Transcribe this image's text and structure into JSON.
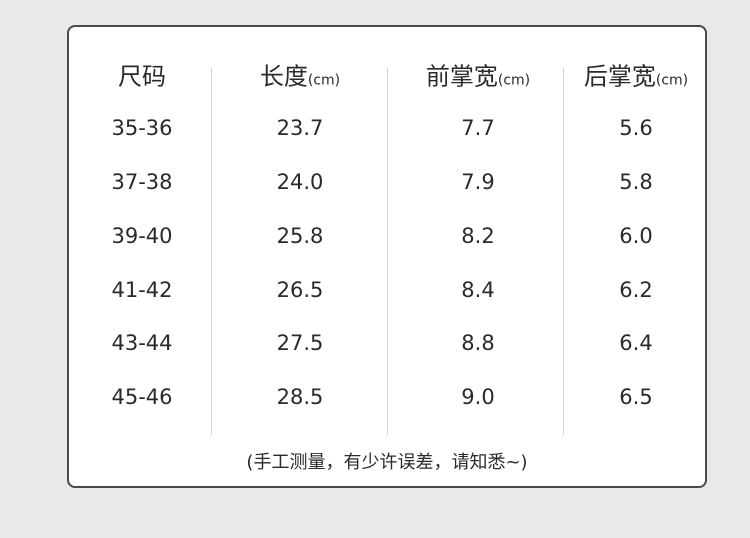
{
  "table": {
    "headers": [
      {
        "label": "尺码",
        "unit": ""
      },
      {
        "label": "长度",
        "unit": "(cm)"
      },
      {
        "label": "前掌宽",
        "unit": "(cm)"
      },
      {
        "label": "后掌宽",
        "unit": "(cm)"
      }
    ],
    "rows": [
      [
        "35-36",
        "23.7",
        "7.7",
        "5.6"
      ],
      [
        "37-38",
        "24.0",
        "7.9",
        "5.8"
      ],
      [
        "39-40",
        "25.8",
        "8.2",
        "6.0"
      ],
      [
        "41-42",
        "26.5",
        "8.4",
        "6.2"
      ],
      [
        "43-44",
        "27.5",
        "8.8",
        "6.4"
      ],
      [
        "45-46",
        "28.5",
        "9.0",
        "6.5"
      ]
    ]
  },
  "note": "(手工测量，有少许误差，请知悉~)"
}
